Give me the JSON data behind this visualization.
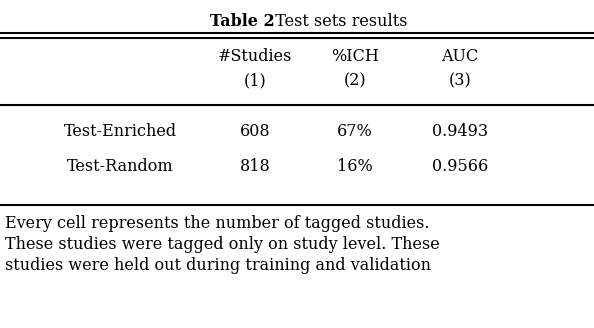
{
  "title_bold": "Table 2",
  "title_regular": ". Test sets results",
  "col_headers_line1": [
    "#Studies",
    "%ICH",
    "AUC"
  ],
  "col_headers_line2": [
    "(1)",
    "(2)",
    "(3)"
  ],
  "row_labels": [
    "Test-Enriched",
    "Test-Random"
  ],
  "table_data": [
    [
      "608",
      "67%",
      "0.9493"
    ],
    [
      "818",
      "16%",
      "0.9566"
    ]
  ],
  "footnote_lines": [
    "Every cell represents the number of tagged studies.",
    "These studies were tagged only on study level. These",
    "studies were held out during training and validation"
  ],
  "bg_color": "#ffffff",
  "text_color": "#000000",
  "font_size_title": 11.5,
  "font_size_table": 11.5,
  "font_size_footnote": 11.5,
  "fig_width": 5.94,
  "fig_height": 3.28,
  "dpi": 100
}
